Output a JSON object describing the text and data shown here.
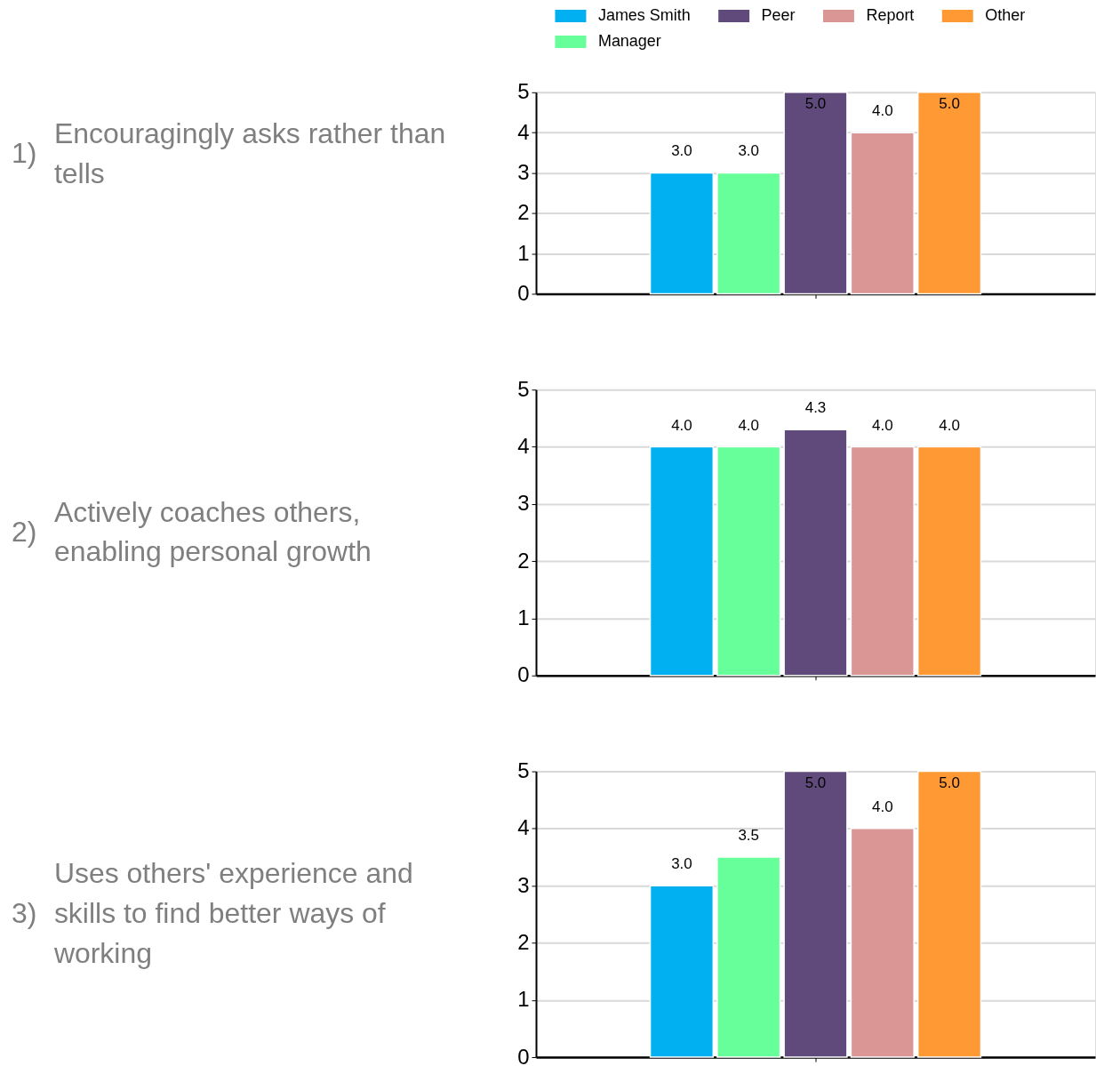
{
  "chart_data": [
    {
      "type": "bar",
      "title": "Encouragingly asks rather than tells",
      "annotations": [
        "1)"
      ],
      "categories": [
        null
      ],
      "series": [
        {
          "name": "James Smith",
          "color": "#00b0f0",
          "values": [
            3
          ],
          "value_labels": [
            "3.0"
          ]
        },
        {
          "name": "Manager",
          "color": "#66ff99",
          "values": [
            3
          ],
          "value_labels": [
            "3.0"
          ]
        },
        {
          "name": "Peer",
          "color": "#604a7b",
          "values": [
            5
          ],
          "value_labels": [
            "5.0"
          ]
        },
        {
          "name": "Report",
          "color": "#d99694",
          "values": [
            4
          ],
          "value_labels": [
            "4.0"
          ]
        },
        {
          "name": "Other",
          "color": "#ff9933",
          "values": [
            5
          ],
          "value_labels": [
            "5.0"
          ]
        }
      ],
      "ylim": [
        0,
        5
      ],
      "yticks": [
        0,
        1,
        2,
        3,
        4,
        5
      ],
      "grid": "y",
      "legend": "top",
      "tick_labels": "y"
    },
    {
      "type": "bar",
      "title": "Actively coaches others, enabling personal growth",
      "annotations": [
        "2)"
      ],
      "categories": [
        null
      ],
      "series": [
        {
          "name": "James Smith",
          "color": "#00b0f0",
          "values": [
            4
          ],
          "value_labels": [
            "4.0"
          ]
        },
        {
          "name": "Manager",
          "color": "#66ff99",
          "values": [
            4
          ],
          "value_labels": [
            "4.0"
          ]
        },
        {
          "name": "Peer",
          "color": "#604a7b",
          "values": [
            4.3
          ],
          "value_labels": [
            "4.3"
          ]
        },
        {
          "name": "Report",
          "color": "#d99694",
          "values": [
            4
          ],
          "value_labels": [
            "4.0"
          ]
        },
        {
          "name": "Other",
          "color": "#ff9933",
          "values": [
            4
          ],
          "value_labels": [
            "4.0"
          ]
        }
      ],
      "ylim": [
        0,
        5
      ],
      "yticks": [
        0,
        1,
        2,
        3,
        4,
        5
      ],
      "grid": "y",
      "tick_labels": "y"
    },
    {
      "type": "bar",
      "title": "Uses others' experience and skills to find better ways of working",
      "annotations": [
        "3)"
      ],
      "categories": [
        null
      ],
      "series": [
        {
          "name": "James Smith",
          "color": "#00b0f0",
          "values": [
            3
          ],
          "value_labels": [
            "3.0"
          ]
        },
        {
          "name": "Manager",
          "color": "#66ff99",
          "values": [
            3.5
          ],
          "value_labels": [
            "3.5"
          ]
        },
        {
          "name": "Peer",
          "color": "#604a7b",
          "values": [
            5
          ],
          "value_labels": [
            "5.0"
          ]
        },
        {
          "name": "Report",
          "color": "#d99694",
          "values": [
            4
          ],
          "value_labels": [
            "4.0"
          ]
        },
        {
          "name": "Other",
          "color": "#ff9933",
          "values": [
            5
          ],
          "value_labels": [
            "5.0"
          ]
        }
      ],
      "ylim": [
        0,
        5
      ],
      "yticks": [
        0,
        1,
        2,
        3,
        4,
        5
      ],
      "grid": "y",
      "tick_labels": "y"
    }
  ]
}
